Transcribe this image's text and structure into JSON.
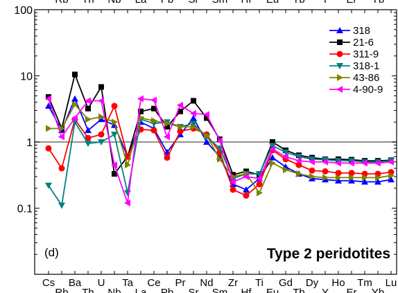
{
  "chart_data": {
    "type": "line",
    "title": "Type 2 peridotites",
    "panel_label": "(d)",
    "xlabel": "",
    "ylabel": "",
    "y_scale": "log",
    "ylim": [
      0.01,
      100
    ],
    "y_ticks": [
      "0.1",
      "1",
      "10",
      "100"
    ],
    "reference_line": 1,
    "categories": [
      "Cs",
      "Rb",
      "Ba",
      "Th",
      "U",
      "Nb",
      "Ta",
      "La",
      "Ce",
      "Pb",
      "Pr",
      "Sr",
      "Nd",
      "Sm",
      "Zr",
      "Hf",
      "Ti",
      "Eu",
      "Gd",
      "Tb",
      "Dy",
      "Y",
      "Ho",
      "Er",
      "Tm",
      "Yb",
      "Lu"
    ],
    "categories_top_row": [
      "Rb",
      "Th",
      "Nb",
      "La",
      "Pb",
      "Sr",
      "Sm",
      "Hf",
      "Eu",
      "Tb",
      "Y",
      "Er",
      "Yb"
    ],
    "legend_position": "top-right",
    "series": [
      {
        "name": "318",
        "color": "#0000ff",
        "marker": "triangle-up",
        "values": [
          3.5,
          1.5,
          4.5,
          1.5,
          2.2,
          1.8,
          0.6,
          2.0,
          1.6,
          0.7,
          1.3,
          2.3,
          1.0,
          0.6,
          0.23,
          0.19,
          0.28,
          0.58,
          0.42,
          0.33,
          0.28,
          0.27,
          0.26,
          0.26,
          0.25,
          0.25,
          0.27
        ]
      },
      {
        "name": "21-6",
        "color": "#000000",
        "marker": "square",
        "values": [
          4.8,
          1.6,
          10.5,
          3.2,
          6.8,
          0.33,
          0.6,
          2.9,
          3.2,
          1.7,
          2.9,
          4.2,
          2.3,
          1.1,
          0.32,
          0.36,
          0.32,
          1.0,
          0.75,
          0.63,
          0.58,
          0.55,
          0.55,
          0.54,
          0.52,
          0.52,
          0.53
        ]
      },
      {
        "name": "311-9",
        "color": "#ff0000",
        "marker": "circle",
        "values": [
          0.8,
          0.4,
          2.2,
          1.15,
          1.3,
          3.5,
          0.6,
          1.55,
          1.5,
          0.58,
          1.45,
          1.6,
          1.3,
          0.7,
          0.19,
          0.155,
          0.23,
          0.75,
          0.55,
          0.45,
          0.37,
          0.36,
          0.34,
          0.34,
          0.33,
          0.33,
          0.35
        ]
      },
      {
        "name": "318-1",
        "color": "#008080",
        "marker": "triangle-down",
        "values": [
          0.22,
          0.11,
          2.0,
          0.95,
          1.0,
          1.3,
          0.17,
          2.2,
          1.9,
          2.0,
          1.7,
          1.9,
          1.2,
          0.8,
          0.28,
          0.33,
          0.33,
          0.88,
          0.7,
          0.6,
          0.55,
          0.54,
          0.52,
          0.52,
          0.5,
          0.5,
          0.52
        ]
      },
      {
        "name": "43-86",
        "color": "#808000",
        "marker": "triangle-right",
        "values": [
          1.6,
          1.6,
          3.7,
          2.2,
          2.4,
          2.0,
          0.45,
          2.3,
          2.1,
          1.9,
          1.7,
          1.7,
          1.25,
          0.55,
          0.3,
          0.33,
          0.17,
          0.48,
          0.38,
          0.33,
          0.3,
          0.29,
          0.29,
          0.29,
          0.29,
          0.29,
          0.31
        ]
      },
      {
        "name": "4-90-9",
        "color": "#ff00ff",
        "marker": "triangle-left",
        "values": [
          4.5,
          1.2,
          2.3,
          4.2,
          4.2,
          0.45,
          0.12,
          4.5,
          4.3,
          1.2,
          3.6,
          2.7,
          2.6,
          1.05,
          0.25,
          0.3,
          0.28,
          0.78,
          0.6,
          0.52,
          0.5,
          0.5,
          0.48,
          0.48,
          0.48,
          0.48,
          0.5
        ]
      }
    ]
  }
}
